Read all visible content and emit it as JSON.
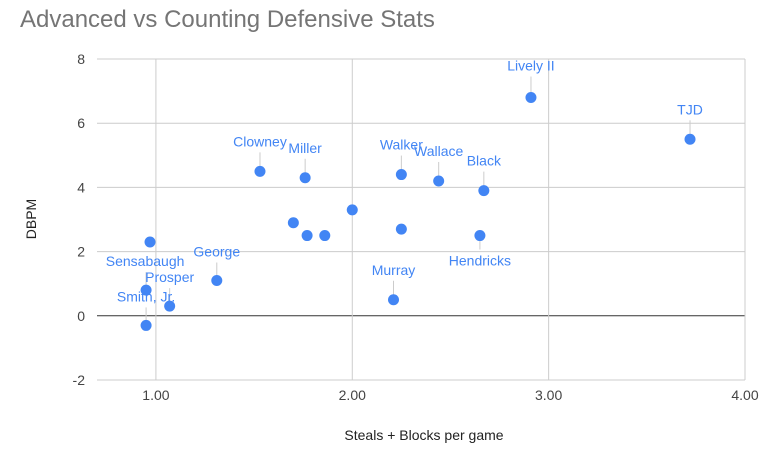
{
  "chart_data": {
    "type": "scatter",
    "title": "Advanced vs Counting Defensive Stats",
    "xlabel": "Steals + Blocks per game",
    "ylabel": "DBPM",
    "xlim": [
      0.7,
      4.0
    ],
    "ylim": [
      -2,
      8
    ],
    "x_ticks": [
      1.0,
      2.0,
      3.0,
      4.0
    ],
    "x_tick_labels": [
      "1.00",
      "2.00",
      "3.00",
      "4.00"
    ],
    "y_ticks": [
      -2,
      0,
      2,
      4,
      6,
      8
    ],
    "y_tick_labels": [
      "-2",
      "0",
      "2",
      "4",
      "6",
      "8"
    ],
    "grid": true,
    "point_color": "#4285f4",
    "label_color": "#4285f4",
    "points": [
      {
        "x": 2.91,
        "y": 6.8,
        "label": "Lively II"
      },
      {
        "x": 3.72,
        "y": 5.5,
        "label": "TJD"
      },
      {
        "x": 1.53,
        "y": 4.5,
        "label": "Clowney"
      },
      {
        "x": 1.76,
        "y": 4.3,
        "label": "Miller"
      },
      {
        "x": 2.25,
        "y": 4.4,
        "label": "Walker"
      },
      {
        "x": 2.44,
        "y": 4.2,
        "label": "Wallace"
      },
      {
        "x": 2.67,
        "y": 3.9,
        "label": "Black"
      },
      {
        "x": 2.65,
        "y": 2.5,
        "label": "Hendricks"
      },
      {
        "x": 1.7,
        "y": 2.9,
        "label": ""
      },
      {
        "x": 1.77,
        "y": 2.5,
        "label": ""
      },
      {
        "x": 1.86,
        "y": 2.5,
        "label": ""
      },
      {
        "x": 2.0,
        "y": 3.3,
        "label": ""
      },
      {
        "x": 2.25,
        "y": 2.7,
        "label": ""
      },
      {
        "x": 2.21,
        "y": 0.5,
        "label": "Murray"
      },
      {
        "x": 0.97,
        "y": 2.3,
        "label": ""
      },
      {
        "x": 1.31,
        "y": 1.1,
        "label": "George"
      },
      {
        "x": 0.95,
        "y": 0.8,
        "label": "Sensabaugh"
      },
      {
        "x": 1.07,
        "y": 0.3,
        "label": "Prosper"
      },
      {
        "x": 0.95,
        "y": -0.3,
        "label": "Smith, Jr."
      }
    ]
  }
}
